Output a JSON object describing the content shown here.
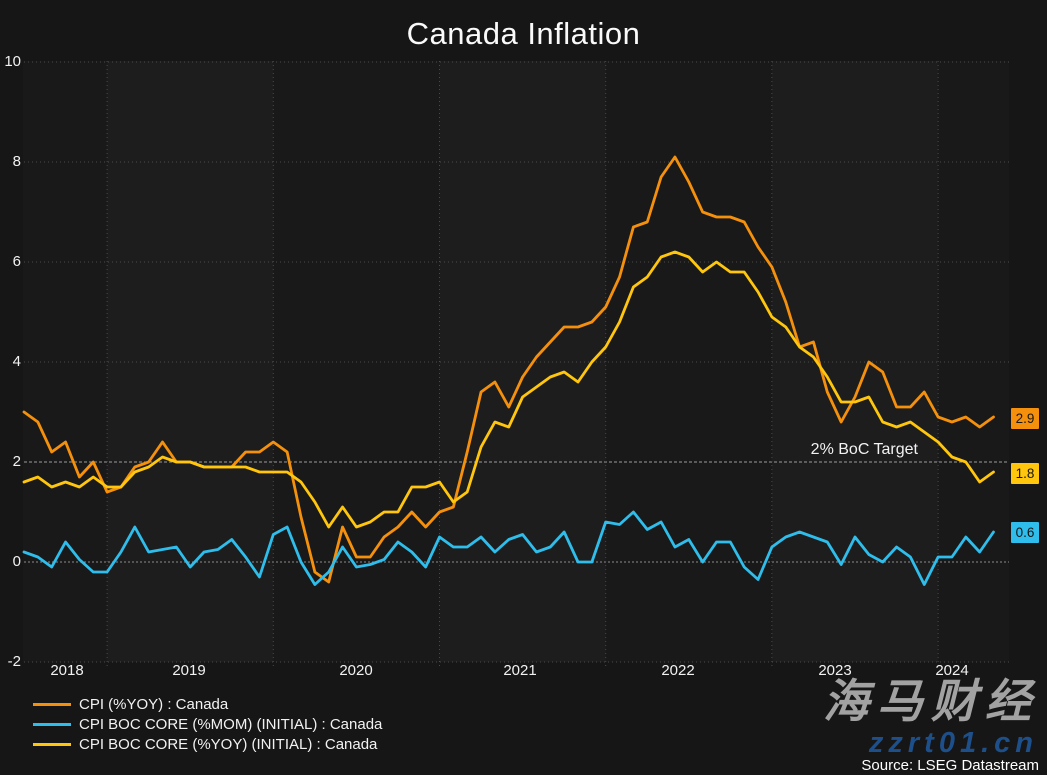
{
  "title": "Canada Inflation",
  "annotation": {
    "target_label": "2% BoC Target"
  },
  "source": "Source: LSEG Datastream",
  "watermark": {
    "cjk": "海马财经",
    "url": "zzrt01.cn"
  },
  "colors": {
    "background": "#161616",
    "plot_background": "#191919",
    "alt_year_band": "#1d1d1d",
    "grid": "#4a4a4a",
    "zero_line": "#8a8a8a",
    "target_line": "#9c9c9c",
    "text": "#f2f2f2",
    "cpi_yoy": "#F5900D",
    "core_mom": "#2FBDEB",
    "core_yoy": "#FFC60D"
  },
  "axes": {
    "y_ticks": [
      "10",
      "8",
      "6",
      "4",
      "2",
      "0",
      "-2"
    ],
    "x_ticks": [
      "2018",
      "2019",
      "2020",
      "2021",
      "2022",
      "2023",
      "2024"
    ]
  },
  "end_labels": {
    "cpi_yoy": "2.9",
    "core_yoy": "1.8",
    "core_mom": "0.6"
  },
  "legend": {
    "items": [
      {
        "label": "CPI (%YOY) : Canada"
      },
      {
        "label": "CPI BOC CORE (%MOM) (INITIAL) : Canada"
      },
      {
        "label": "CPI BOC CORE (%YOY) (INITIAL) : Canada"
      }
    ]
  },
  "chart_data": {
    "type": "line",
    "title": "Canada Inflation",
    "x_start": "2018-07",
    "x_end": "2024-05",
    "frequency": "monthly",
    "x_tick_labels": [
      "2018",
      "2019",
      "2020",
      "2021",
      "2022",
      "2023",
      "2024"
    ],
    "ylim": [
      -2,
      10
    ],
    "y_tick_step": 2,
    "grid": true,
    "legend_position": "bottom-left",
    "target_line": {
      "value": 2,
      "label": "2% BoC Target"
    },
    "series": [
      {
        "id": "cpi-yoy",
        "name": "CPI (%YOY) : Canada",
        "color": "#F5900D",
        "last_value_label": "2.9",
        "values": [
          3.0,
          2.8,
          2.2,
          2.4,
          1.7,
          2.0,
          1.4,
          1.5,
          1.9,
          2.0,
          2.4,
          2.0,
          2.0,
          1.9,
          1.9,
          1.9,
          2.2,
          2.2,
          2.4,
          2.2,
          0.9,
          -0.2,
          -0.4,
          0.7,
          0.1,
          0.1,
          0.5,
          0.7,
          1.0,
          0.7,
          1.0,
          1.1,
          2.2,
          3.4,
          3.6,
          3.1,
          3.7,
          4.1,
          4.4,
          4.7,
          4.7,
          4.8,
          5.1,
          5.7,
          6.7,
          6.8,
          7.7,
          8.1,
          7.6,
          7.0,
          6.9,
          6.9,
          6.8,
          6.3,
          5.9,
          5.2,
          4.3,
          4.4,
          3.4,
          2.8,
          3.3,
          4.0,
          3.8,
          3.1,
          3.1,
          3.4,
          2.9,
          2.8,
          2.9,
          2.7,
          2.9
        ]
      },
      {
        "id": "core-mom",
        "name": "CPI BOC CORE (%MOM) (INITIAL) : Canada",
        "color": "#2FBDEB",
        "last_value_label": "0.6",
        "values": [
          0.2,
          0.1,
          -0.1,
          0.4,
          0.05,
          -0.2,
          -0.2,
          0.2,
          0.7,
          0.2,
          0.25,
          0.3,
          -0.1,
          0.2,
          0.25,
          0.45,
          0.1,
          -0.3,
          0.55,
          0.7,
          0.0,
          -0.45,
          -0.2,
          0.3,
          -0.1,
          -0.05,
          0.05,
          0.4,
          0.2,
          -0.1,
          0.5,
          0.3,
          0.3,
          0.5,
          0.2,
          0.45,
          0.55,
          0.2,
          0.3,
          0.6,
          0.0,
          0.0,
          0.8,
          0.75,
          1.0,
          0.65,
          0.8,
          0.3,
          0.45,
          0.0,
          0.4,
          0.4,
          -0.1,
          -0.35,
          0.3,
          0.5,
          0.6,
          0.5,
          0.4,
          -0.05,
          0.5,
          0.15,
          0.0,
          0.3,
          0.1,
          -0.45,
          0.1,
          0.1,
          0.5,
          0.2,
          0.6
        ]
      },
      {
        "id": "core-yoy",
        "name": "CPI BOC CORE (%YOY) (INITIAL) : Canada",
        "color": "#FFC60D",
        "last_value_label": "1.8",
        "values": [
          1.6,
          1.7,
          1.5,
          1.6,
          1.5,
          1.7,
          1.5,
          1.5,
          1.8,
          1.9,
          2.1,
          2.0,
          2.0,
          1.9,
          1.9,
          1.9,
          1.9,
          1.8,
          1.8,
          1.8,
          1.6,
          1.2,
          0.7,
          1.1,
          0.7,
          0.8,
          1.0,
          1.0,
          1.5,
          1.5,
          1.6,
          1.2,
          1.4,
          2.3,
          2.8,
          2.7,
          3.3,
          3.5,
          3.7,
          3.8,
          3.6,
          4.0,
          4.3,
          4.8,
          5.5,
          5.7,
          6.1,
          6.2,
          6.1,
          5.8,
          6.0,
          5.8,
          5.8,
          5.4,
          4.9,
          4.7,
          4.3,
          4.1,
          3.7,
          3.2,
          3.2,
          3.3,
          2.8,
          2.7,
          2.8,
          2.6,
          2.4,
          2.1,
          2.0,
          1.6,
          1.8
        ]
      }
    ]
  }
}
